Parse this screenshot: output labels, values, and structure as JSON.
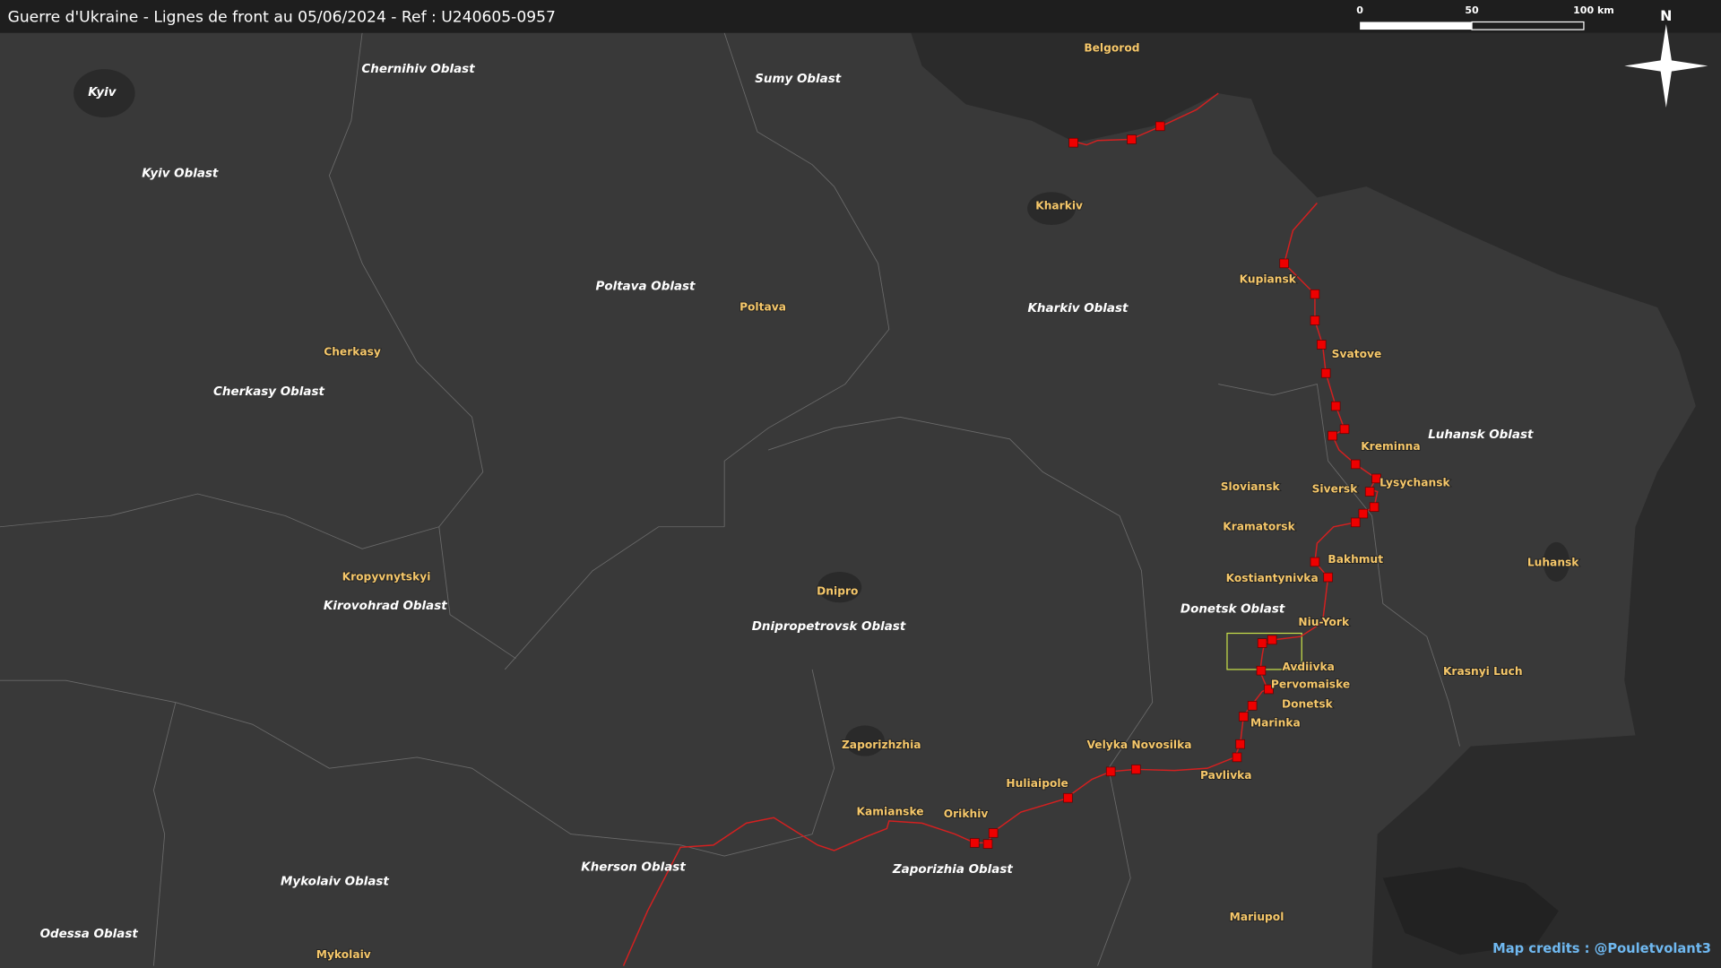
{
  "header": {
    "title": "Guerre d'Ukraine - Lignes de front au 05/06/2024 - Ref : U240605-0957"
  },
  "scale": {
    "zero": "0",
    "mid": "50",
    "end": "100 km"
  },
  "compass": "N",
  "capital": "Kyiv",
  "regions": [
    "Chernihiv Oblast",
    "Sumy Oblast",
    "Kyiv Oblast",
    "Poltava Oblast",
    "Kharkiv Oblast",
    "Cherkasy Oblast",
    "Luhansk Oblast",
    "Donetsk Oblast",
    "Kirovohrad Oblast",
    "Dnipropetrovsk Oblast",
    "Kherson Oblast",
    "Zaporizhia Oblast",
    "Mykolaiv Oblast",
    "Odessa Oblast"
  ],
  "cities": [
    "Belgorod",
    "Kharkiv",
    "Kupiansk",
    "Poltava",
    "Svatove",
    "Cherkasy",
    "Kreminna",
    "Lysychansk",
    "Sloviansk",
    "Siversk",
    "Kramatorsk",
    "Bakhmut",
    "Luhansk",
    "Kropyvnytskyi",
    "Kostiantynivka",
    "Dnipro",
    "Niu-York",
    "Avdiivka",
    "Krasnyi Luch",
    "Pervomaiske",
    "Donetsk",
    "Marinka",
    "Zaporizhzhia",
    "Velyka Novosilka",
    "Pavlivka",
    "Huliaipole",
    "Kamianske",
    "Orikhiv",
    "Mariupol",
    "Mykolaiv"
  ],
  "credits": "Map credits : @Pouletvolant3"
}
